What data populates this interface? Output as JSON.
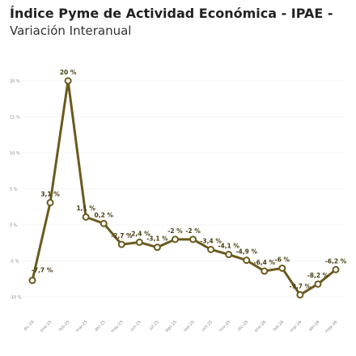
{
  "chart_data": {
    "type": "line",
    "title": "Índice Pyme de Actividad Económica - IPAE -",
    "subtitle": "Variación Interanual",
    "categories": [
      "dic-24",
      "ene-25",
      "feb-25",
      "mar-25",
      "abr-25",
      "may-25",
      "jun-25",
      "jul-25",
      "ago-25",
      "sep-25",
      "oct-25",
      "nov-25",
      "dic-25",
      "ene-26",
      "feb-26",
      "mar-26",
      "abr-26",
      "may-26"
    ],
    "values": [
      -7.7,
      3.1,
      20,
      1.1,
      0.2,
      -2.7,
      -2.4,
      -3.1,
      -2,
      -2,
      -3.4,
      -4.1,
      -4.9,
      -6.4,
      -6,
      -9.7,
      -8.2,
      -6.2
    ],
    "value_labels": [
      "-7,7 %",
      "3,1 %",
      "20 %",
      "1,1 %",
      "0,2 %",
      "-2,7 %",
      "-2,4 %",
      "-3,1 %",
      "-2 %",
      "-2 %",
      "-3,4 %",
      "-4,1 %",
      "-4,9 %",
      "-6,4 %",
      "-6 %",
      "-9,7 %",
      "-8,2 %",
      "-6,2 %"
    ],
    "color": "#6b5a1e",
    "ylim": [
      -11,
      21
    ],
    "yticks": [
      {
        "value": -10,
        "label": "-10 %"
      },
      {
        "value": -5,
        "label": "-5 %"
      },
      {
        "value": 0,
        "label": "0 %"
      },
      {
        "value": 5,
        "label": "5 %"
      },
      {
        "value": 10,
        "label": "10 %"
      },
      {
        "value": 15,
        "label": "15 %"
      },
      {
        "value": 20,
        "label": "20 %"
      }
    ],
    "grid": true
  }
}
